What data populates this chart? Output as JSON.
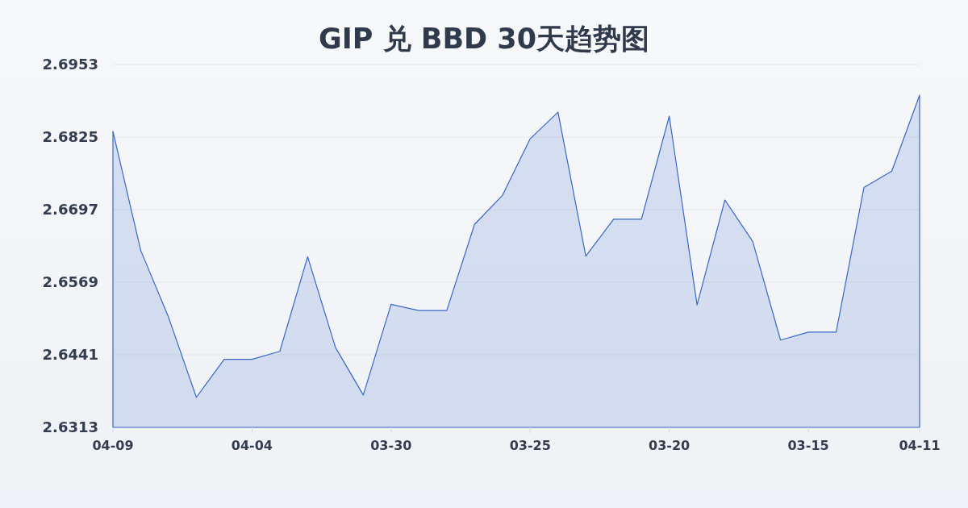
{
  "chart_data": {
    "type": "area",
    "title": "GIP 兑 BBD 30天趋势图",
    "categories": [
      "04-09",
      null,
      null,
      null,
      null,
      "04-04",
      null,
      null,
      null,
      null,
      "03-30",
      null,
      null,
      null,
      null,
      "03-25",
      null,
      null,
      null,
      null,
      "03-20",
      null,
      null,
      null,
      null,
      "03-15",
      null,
      null,
      null,
      "04-11"
    ],
    "series": [
      {
        "color": "#3a66c8",
        "values": [
          2.6835,
          2.6625,
          2.6507,
          2.6366,
          2.6433,
          2.6433,
          2.6447,
          2.6614,
          2.6454,
          2.637,
          2.653,
          2.6519,
          2.6519,
          2.6671,
          2.6722,
          2.6822,
          2.6869,
          2.6615,
          2.668,
          2.668,
          2.6862,
          2.6529,
          2.6714,
          2.6641,
          2.6467,
          2.6481,
          2.6481,
          2.6736,
          2.6765,
          2.6899
        ]
      }
    ],
    "ylim": [
      2.6313,
      2.6953
    ],
    "yticks": [
      2.6313,
      2.6441,
      2.6569,
      2.6697,
      2.6825,
      2.6953
    ],
    "grid": "y"
  }
}
